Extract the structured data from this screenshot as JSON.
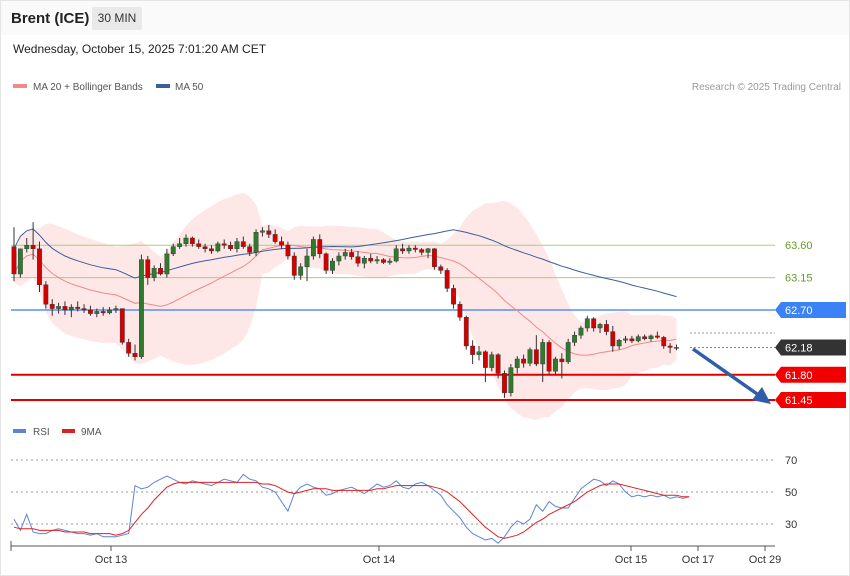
{
  "header": {
    "instrument": "Brent (ICE)",
    "timeframe": "30 MIN",
    "timestamp": "Wednesday, October 15, 2025 7:01:20 AM CET"
  },
  "legend": {
    "ma20_label": "MA 20 + Bollinger Bands",
    "ma20_color": "#f08a8a",
    "ma50_label": "MA 50",
    "ma50_color": "#3c5f9c",
    "credit": "Research © 2025 Trading Central"
  },
  "rsi_legend": {
    "rsi_label": "RSI",
    "rsi_color": "#5b84d6",
    "ma_label": "9MA",
    "ma_color": "#e02020"
  },
  "chart_data": [
    {
      "type": "candlestick",
      "levels": [
        {
          "value": 63.6,
          "label": "63.60",
          "kind": "resistance"
        },
        {
          "value": 63.15,
          "label": "63.15",
          "kind": "resistance"
        },
        {
          "value": 62.7,
          "label": "62.70",
          "kind": "pivot"
        },
        {
          "value": 62.18,
          "label": "62.18",
          "kind": "last"
        },
        {
          "value": 61.8,
          "label": "61.80",
          "kind": "support"
        },
        {
          "value": 61.45,
          "label": "61.45",
          "kind": "support"
        }
      ],
      "xticks": [
        "Oct 13",
        "Oct 14",
        "Oct 15",
        "Oct 17",
        "Oct 29"
      ],
      "direction": "down",
      "candles": [
        [
          63.58,
          63.85,
          63.1,
          63.2
        ],
        [
          63.2,
          63.55,
          63.15,
          63.55
        ],
        [
          63.55,
          63.7,
          63.5,
          63.6
        ],
        [
          63.6,
          63.92,
          63.4,
          63.55
        ],
        [
          63.55,
          63.65,
          62.95,
          63.05
        ],
        [
          63.05,
          63.1,
          62.72,
          62.78
        ],
        [
          62.78,
          62.85,
          62.62,
          62.72
        ],
        [
          62.72,
          62.8,
          62.65,
          62.75
        ],
        [
          62.75,
          62.82,
          62.63,
          62.7
        ],
        [
          62.7,
          62.78,
          62.6,
          62.74
        ],
        [
          62.74,
          62.82,
          62.68,
          62.72
        ],
        [
          62.72,
          62.78,
          62.66,
          62.7
        ],
        [
          62.7,
          62.76,
          62.62,
          62.65
        ],
        [
          62.65,
          62.72,
          62.6,
          62.68
        ],
        [
          62.68,
          62.74,
          62.62,
          62.66
        ],
        [
          62.66,
          62.74,
          62.64,
          62.7
        ],
        [
          62.7,
          62.76,
          62.66,
          62.72
        ],
        [
          62.72,
          62.72,
          62.22,
          62.25
        ],
        [
          62.25,
          62.3,
          62.05,
          62.1
        ],
        [
          62.1,
          62.22,
          62.0,
          62.05
        ],
        [
          62.05,
          63.47,
          62.02,
          63.4
        ],
        [
          63.4,
          63.45,
          63.05,
          63.15
        ],
        [
          63.15,
          63.32,
          63.1,
          63.28
        ],
        [
          63.28,
          63.35,
          63.18,
          63.2
        ],
        [
          63.2,
          63.55,
          63.15,
          63.48
        ],
        [
          63.48,
          63.62,
          63.45,
          63.58
        ],
        [
          63.58,
          63.7,
          63.55,
          63.62
        ],
        [
          63.62,
          63.75,
          63.58,
          63.7
        ],
        [
          63.7,
          63.72,
          63.58,
          63.62
        ],
        [
          63.62,
          63.68,
          63.55,
          63.58
        ],
        [
          63.58,
          63.62,
          63.5,
          63.55
        ],
        [
          63.55,
          63.6,
          63.48,
          63.52
        ],
        [
          63.52,
          63.65,
          63.5,
          63.62
        ],
        [
          63.62,
          63.68,
          63.55,
          63.6
        ],
        [
          63.6,
          63.65,
          63.52,
          63.55
        ],
        [
          63.55,
          63.7,
          63.5,
          63.65
        ],
        [
          63.65,
          63.72,
          63.55,
          63.58
        ],
        [
          63.58,
          63.62,
          63.45,
          63.5
        ],
        [
          63.5,
          63.82,
          63.45,
          63.78
        ],
        [
          63.78,
          63.85,
          63.72,
          63.8
        ],
        [
          63.8,
          63.88,
          63.7,
          63.75
        ],
        [
          63.75,
          63.82,
          63.62,
          63.65
        ],
        [
          63.65,
          63.72,
          63.55,
          63.6
        ],
        [
          63.6,
          63.65,
          63.4,
          63.45
        ],
        [
          63.45,
          63.5,
          63.12,
          63.18
        ],
        [
          63.18,
          63.35,
          63.12,
          63.3
        ],
        [
          63.3,
          63.55,
          63.1,
          63.45
        ],
        [
          63.45,
          63.72,
          63.4,
          63.68
        ],
        [
          63.68,
          63.75,
          63.42,
          63.48
        ],
        [
          63.48,
          63.5,
          63.2,
          63.25
        ],
        [
          63.25,
          63.42,
          63.2,
          63.38
        ],
        [
          63.38,
          63.5,
          63.32,
          63.45
        ],
        [
          63.45,
          63.55,
          63.4,
          63.5
        ],
        [
          63.5,
          63.55,
          63.4,
          63.44
        ],
        [
          63.44,
          63.52,
          63.3,
          63.35
        ],
        [
          63.35,
          63.45,
          63.28,
          63.42
        ],
        [
          63.42,
          63.48,
          63.35,
          63.38
        ],
        [
          63.38,
          63.45,
          63.34,
          63.4
        ],
        [
          63.4,
          63.42,
          63.34,
          63.36
        ],
        [
          63.36,
          63.42,
          63.33,
          63.38
        ],
        [
          63.38,
          63.6,
          63.36,
          63.55
        ],
        [
          63.55,
          63.62,
          63.48,
          63.52
        ],
        [
          63.52,
          63.6,
          63.48,
          63.56
        ],
        [
          63.56,
          63.6,
          63.5,
          63.54
        ],
        [
          63.54,
          63.56,
          63.46,
          63.5
        ],
        [
          63.5,
          63.56,
          63.42,
          63.55
        ],
        [
          63.55,
          63.56,
          63.26,
          63.3
        ],
        [
          63.3,
          63.33,
          63.2,
          63.25
        ],
        [
          63.25,
          63.28,
          62.95,
          63.0
        ],
        [
          63.0,
          63.05,
          62.72,
          62.78
        ],
        [
          62.78,
          62.82,
          62.55,
          62.6
        ],
        [
          62.6,
          62.62,
          62.15,
          62.2
        ],
        [
          62.2,
          62.28,
          61.95,
          62.08
        ],
        [
          62.08,
          62.2,
          62.0,
          62.12
        ],
        [
          62.12,
          62.14,
          61.7,
          61.9
        ],
        [
          61.9,
          62.12,
          61.85,
          62.08
        ],
        [
          62.08,
          62.1,
          61.75,
          61.82
        ],
        [
          61.82,
          61.86,
          61.48,
          61.55
        ],
        [
          61.55,
          61.95,
          61.5,
          61.9
        ],
        [
          61.9,
          62.06,
          61.82,
          62.02
        ],
        [
          62.02,
          62.08,
          61.9,
          61.96
        ],
        [
          61.96,
          62.18,
          61.92,
          62.15
        ],
        [
          62.15,
          62.35,
          61.92,
          61.95
        ],
        [
          61.95,
          62.3,
          61.7,
          62.25
        ],
        [
          62.25,
          62.28,
          61.8,
          61.85
        ],
        [
          61.85,
          62.05,
          61.8,
          62.02
        ],
        [
          62.02,
          62.1,
          61.75,
          61.98
        ],
        [
          61.98,
          62.3,
          61.95,
          62.25
        ],
        [
          62.25,
          62.4,
          62.2,
          62.35
        ],
        [
          62.35,
          62.48,
          62.3,
          62.45
        ],
        [
          62.45,
          62.62,
          62.4,
          62.58
        ],
        [
          62.58,
          62.6,
          62.4,
          62.45
        ],
        [
          62.45,
          62.52,
          62.38,
          62.5
        ],
        [
          62.5,
          62.56,
          62.35,
          62.4
        ],
        [
          62.4,
          62.48,
          62.12,
          62.2
        ],
        [
          62.2,
          62.3,
          62.15,
          62.28
        ],
        [
          62.28,
          62.34,
          62.24,
          62.3
        ],
        [
          62.3,
          62.34,
          62.24,
          62.27
        ],
        [
          62.27,
          62.36,
          62.25,
          62.33
        ],
        [
          62.33,
          62.36,
          62.28,
          62.3
        ],
        [
          62.3,
          62.36,
          62.26,
          62.34
        ],
        [
          62.34,
          62.4,
          62.3,
          62.32
        ],
        [
          62.32,
          62.34,
          62.16,
          62.2
        ],
        [
          62.2,
          62.24,
          62.1,
          62.18
        ],
        [
          62.18,
          62.22,
          62.14,
          62.18
        ]
      ]
    },
    {
      "type": "line",
      "yticks": [
        "70",
        "50",
        "30"
      ],
      "ylim": [
        15,
        85
      ],
      "series": [
        {
          "name": "RSI",
          "values": [
            33,
            26,
            36,
            25,
            24,
            24,
            26,
            27,
            26,
            25,
            24,
            24,
            23,
            24,
            22,
            22,
            22,
            23,
            24,
            54,
            52,
            53,
            56,
            58,
            60,
            58,
            56,
            55,
            57,
            56,
            55,
            54,
            56,
            58,
            57,
            56,
            61,
            58,
            57,
            53,
            52,
            50,
            44,
            38,
            49,
            53,
            55,
            53,
            52,
            48,
            49,
            51,
            52,
            53,
            51,
            49,
            52,
            55,
            53,
            54,
            57,
            53,
            52,
            55,
            56,
            54,
            51,
            48,
            42,
            38,
            34,
            28,
            24,
            22,
            20,
            21,
            18,
            22,
            28,
            32,
            30,
            33,
            42,
            38,
            44,
            41,
            40,
            40,
            46,
            52,
            55,
            58,
            57,
            54,
            57,
            55,
            50,
            47,
            48,
            47,
            48,
            47,
            48,
            46,
            47,
            46,
            47
          ]
        },
        {
          "name": "9MA",
          "values": [
            28,
            27,
            27,
            27,
            26,
            26,
            26,
            26,
            25,
            25,
            25,
            25,
            24,
            24,
            24,
            24,
            23,
            24,
            26,
            31,
            36,
            40,
            45,
            49,
            53,
            55,
            56,
            56,
            56,
            56,
            56,
            56,
            56,
            56,
            56,
            56,
            56,
            56,
            56,
            55,
            55,
            54,
            52,
            50,
            49,
            50,
            51,
            52,
            52,
            52,
            51,
            51,
            51,
            51,
            51,
            51,
            51,
            52,
            52,
            53,
            54,
            54,
            54,
            54,
            54,
            54,
            53,
            52,
            50,
            47,
            44,
            40,
            36,
            32,
            28,
            25,
            22,
            21,
            22,
            23,
            25,
            28,
            31,
            33,
            36,
            38,
            40,
            42,
            44,
            47,
            50,
            52,
            54,
            55,
            55,
            55,
            54,
            53,
            52,
            51,
            50,
            49,
            48,
            48,
            48,
            47,
            47
          ]
        }
      ]
    }
  ]
}
